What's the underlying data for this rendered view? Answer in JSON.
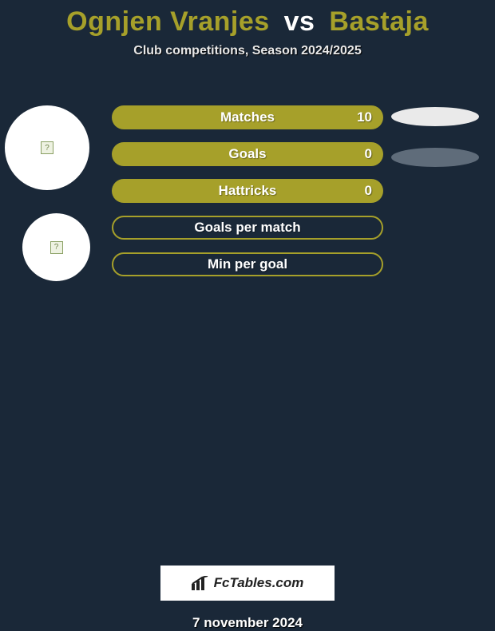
{
  "colors": {
    "olive": "#a6a02a",
    "background": "#1a2838",
    "ellipse_light": "#eaeaea",
    "ellipse_dark": "#5f6c7a",
    "white": "#ffffff"
  },
  "header": {
    "player1": "Ognjen Vranjes",
    "vs": "vs",
    "player2": "Bastaja",
    "subtitle": "Club competitions, Season 2024/2025"
  },
  "stats": [
    {
      "label": "Matches",
      "value": "10",
      "style": "fill",
      "show_value": true
    },
    {
      "label": "Goals",
      "value": "0",
      "style": "fill",
      "show_value": true
    },
    {
      "label": "Hattricks",
      "value": "0",
      "style": "fill",
      "show_value": true
    },
    {
      "label": "Goals per match",
      "value": "",
      "style": "outline",
      "show_value": false
    },
    {
      "label": "Min per goal",
      "value": "",
      "style": "outline",
      "show_value": false
    }
  ],
  "ellipses_count": 2,
  "brand": "FcTables.com",
  "date": "7 november 2024"
}
